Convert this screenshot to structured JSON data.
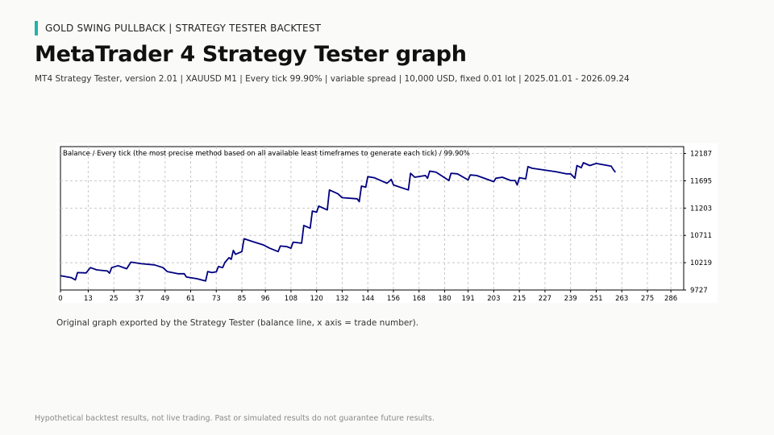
{
  "header": {
    "kicker": "GOLD SWING PULLBACK  |  STRATEGY TESTER BACKTEST",
    "title": "MetaTrader 4 Strategy Tester graph",
    "subtitle": "MT4 Strategy Tester, version 2.01  |  XAUUSD M1  |  Every tick 99.90%  |  variable spread  |  10,000 USD, fixed 0.01 lot  |  2025.01.01 - 2026.09.24"
  },
  "caption": "Original graph exported by the Strategy Tester (balance line, x axis = trade number).",
  "footer": "Hypothetical backtest results, not live trading. Past or simulated results do not guarantee future results.",
  "colors": {
    "accent": "#1fb5a6",
    "balance_line": "#000080",
    "grid": "#c8c8c8"
  },
  "chart_data": {
    "type": "line",
    "title": "Balance / Every tick (the most precise method based on all available least timeframes to generate each tick) / 99.90%",
    "xlabel": "",
    "ylabel": "",
    "x_ticks": [
      "0",
      "13",
      "25",
      "37",
      "49",
      "61",
      "73",
      "85",
      "96",
      "108",
      "120",
      "132",
      "144",
      "156",
      "168",
      "180",
      "191",
      "203",
      "215",
      "227",
      "239",
      "251",
      "263",
      "275",
      "286"
    ],
    "y_ticks": [
      "12187",
      "11695",
      "11203",
      "10711",
      "10219",
      "9727"
    ],
    "xlim": [
      0,
      292
    ],
    "ylim": [
      9727,
      12311
    ],
    "grid": true,
    "series": [
      {
        "name": "",
        "points": [
          [
            0,
            9985
          ],
          [
            5,
            9950
          ],
          [
            7,
            9910
          ],
          [
            8,
            10040
          ],
          [
            12,
            10035
          ],
          [
            14,
            10130
          ],
          [
            17,
            10090
          ],
          [
            22,
            10070
          ],
          [
            23,
            10030
          ],
          [
            24,
            10130
          ],
          [
            27,
            10165
          ],
          [
            31,
            10110
          ],
          [
            33,
            10230
          ],
          [
            38,
            10200
          ],
          [
            44,
            10180
          ],
          [
            48,
            10130
          ],
          [
            50,
            10060
          ],
          [
            55,
            10020
          ],
          [
            58,
            10020
          ],
          [
            59,
            9960
          ],
          [
            64,
            9930
          ],
          [
            67,
            9900
          ],
          [
            68,
            9890
          ],
          [
            69,
            10060
          ],
          [
            71,
            10040
          ],
          [
            73,
            10055
          ],
          [
            74,
            10150
          ],
          [
            76,
            10130
          ],
          [
            77,
            10220
          ],
          [
            79,
            10310
          ],
          [
            80,
            10280
          ],
          [
            81,
            10440
          ],
          [
            82,
            10370
          ],
          [
            85,
            10420
          ],
          [
            86,
            10650
          ],
          [
            90,
            10600
          ],
          [
            95,
            10540
          ],
          [
            98,
            10480
          ],
          [
            102,
            10420
          ],
          [
            103,
            10520
          ],
          [
            106,
            10510
          ],
          [
            108,
            10480
          ],
          [
            109,
            10590
          ],
          [
            113,
            10570
          ],
          [
            114,
            10890
          ],
          [
            117,
            10840
          ],
          [
            118,
            11150
          ],
          [
            120,
            11130
          ],
          [
            121,
            11240
          ],
          [
            125,
            11170
          ],
          [
            126,
            11530
          ],
          [
            130,
            11460
          ],
          [
            132,
            11390
          ],
          [
            139,
            11370
          ],
          [
            140,
            11320
          ],
          [
            141,
            11600
          ],
          [
            143,
            11580
          ],
          [
            144,
            11770
          ],
          [
            147,
            11750
          ],
          [
            153,
            11650
          ],
          [
            155,
            11720
          ],
          [
            156,
            11620
          ],
          [
            163,
            11530
          ],
          [
            164,
            11830
          ],
          [
            166,
            11760
          ],
          [
            171,
            11790
          ],
          [
            172,
            11740
          ],
          [
            173,
            11870
          ],
          [
            176,
            11850
          ],
          [
            182,
            11700
          ],
          [
            183,
            11830
          ],
          [
            186,
            11820
          ],
          [
            191,
            11710
          ],
          [
            192,
            11800
          ],
          [
            195,
            11790
          ],
          [
            203,
            11680
          ],
          [
            204,
            11740
          ],
          [
            207,
            11760
          ],
          [
            211,
            11700
          ],
          [
            213,
            11700
          ],
          [
            214,
            11620
          ],
          [
            215,
            11750
          ],
          [
            218,
            11730
          ],
          [
            219,
            11950
          ],
          [
            221,
            11920
          ],
          [
            232,
            11860
          ],
          [
            237,
            11820
          ],
          [
            239,
            11820
          ],
          [
            241,
            11740
          ],
          [
            242,
            11970
          ],
          [
            244,
            11930
          ],
          [
            245,
            12020
          ],
          [
            248,
            11970
          ],
          [
            251,
            12007
          ],
          [
            258,
            11960
          ],
          [
            259,
            11900
          ],
          [
            260,
            11850
          ]
        ]
      }
    ]
  }
}
